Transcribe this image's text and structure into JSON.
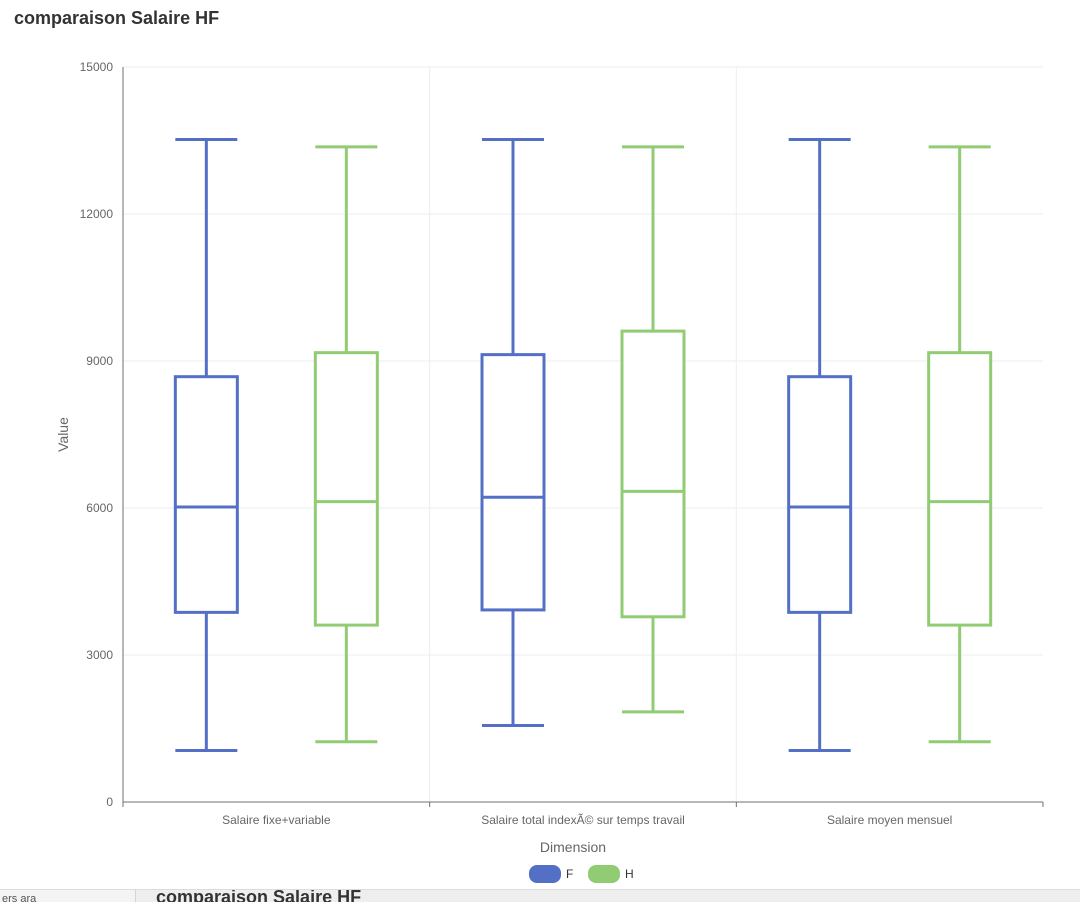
{
  "title": "comparaison Salaire HF",
  "chart_data": {
    "type": "boxplot",
    "categories": [
      "Salaire fixe+variable",
      "Salaire total indexÃ© sur temps travail",
      "Salaire moyen mensuel"
    ],
    "xlabel": "Dimension",
    "ylabel": "Value",
    "ylim": [
      0,
      15000
    ],
    "yticks": [
      0,
      3000,
      6000,
      9000,
      12000,
      15000
    ],
    "grid": true,
    "legend_position": "bottom",
    "series": [
      {
        "name": "F",
        "color": "#5470c6",
        "boxes": [
          {
            "min": 1050,
            "q1": 3870,
            "median": 6020,
            "q3": 8680,
            "max": 13520
          },
          {
            "min": 1560,
            "q1": 3920,
            "median": 6220,
            "q3": 9130,
            "max": 13520
          },
          {
            "min": 1050,
            "q1": 3870,
            "median": 6020,
            "q3": 8680,
            "max": 13520
          }
        ]
      },
      {
        "name": "H",
        "color": "#91cc75",
        "boxes": [
          {
            "min": 1230,
            "q1": 3610,
            "median": 6130,
            "q3": 9170,
            "max": 13370
          },
          {
            "min": 1840,
            "q1": 3780,
            "median": 6340,
            "q3": 9610,
            "max": 13370
          },
          {
            "min": 1230,
            "q1": 3610,
            "median": 6130,
            "q3": 9170,
            "max": 13370
          }
        ]
      }
    ]
  },
  "bottom_strip": {
    "left_text": "ers ara",
    "title": "comparaison Salaire HF"
  }
}
